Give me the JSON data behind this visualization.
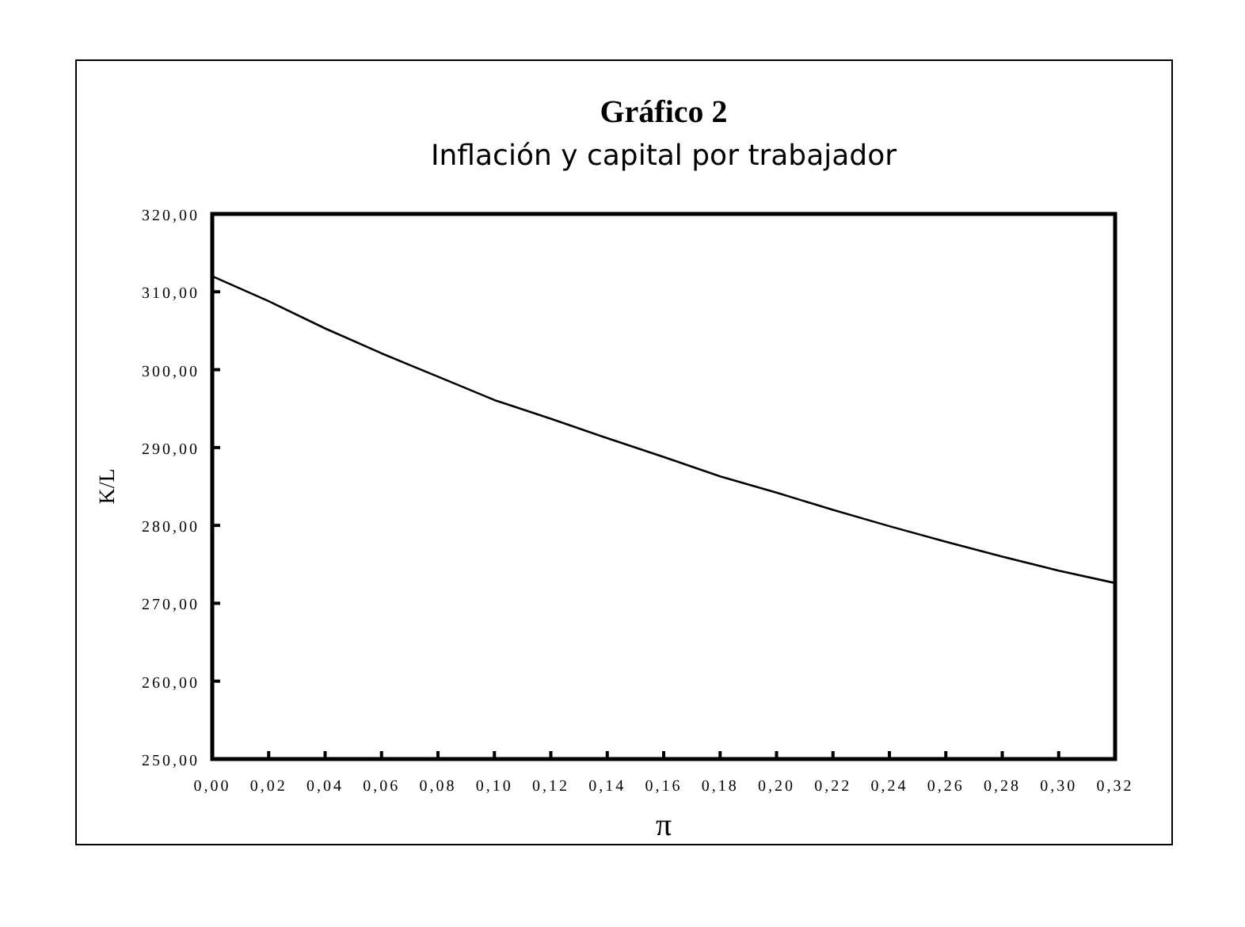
{
  "chart_data": {
    "type": "line",
    "title": "Gráfico 2",
    "subtitle": "Inflación y capital por trabajador",
    "xlabel": "π",
    "ylabel": "K/L",
    "x": [
      0,
      0.02,
      0.04,
      0.06,
      0.08,
      0.1,
      0.12,
      0.14,
      0.16,
      0.18,
      0.2,
      0.22,
      0.24,
      0.26,
      0.28,
      0.3,
      0.32
    ],
    "series": [
      {
        "color": "#000000",
        "values": [
          312,
          308.8,
          305.3,
          302.1,
          299.1,
          296.1,
          293.7,
          291.2,
          288.8,
          286.3,
          284.2,
          282.0,
          279.9,
          277.9,
          276.0,
          274.2,
          272.6
        ]
      }
    ],
    "xlim": [
      0,
      0.32
    ],
    "xticks": [
      {
        "value": 0,
        "label": "0,00"
      },
      {
        "value": 0.02,
        "label": "0,02"
      },
      {
        "value": 0.04,
        "label": "0,04"
      },
      {
        "value": 0.06,
        "label": "0,06"
      },
      {
        "value": 0.08,
        "label": "0,08"
      },
      {
        "value": 0.1,
        "label": "0,10"
      },
      {
        "value": 0.12,
        "label": "0,12"
      },
      {
        "value": 0.14,
        "label": "0,14"
      },
      {
        "value": 0.16,
        "label": "0,16"
      },
      {
        "value": 0.18,
        "label": "0,18"
      },
      {
        "value": 0.2,
        "label": "0,20"
      },
      {
        "value": 0.22,
        "label": "0,22"
      },
      {
        "value": 0.24,
        "label": "0,24"
      },
      {
        "value": 0.26,
        "label": "0,26"
      },
      {
        "value": 0.28,
        "label": "0,28"
      },
      {
        "value": 0.3,
        "label": "0,30"
      },
      {
        "value": 0.32,
        "label": "0,32"
      }
    ],
    "ylim": [
      250,
      320
    ],
    "yticks": [
      {
        "value": 250,
        "label": "250,00"
      },
      {
        "value": 260,
        "label": "260,00"
      },
      {
        "value": 270,
        "label": "270,00"
      },
      {
        "value": 280,
        "label": "280,00"
      },
      {
        "value": 290,
        "label": "290,00"
      },
      {
        "value": 300,
        "label": "300,00"
      },
      {
        "value": 310,
        "label": "310,00"
      },
      {
        "value": 320,
        "label": "320,00"
      }
    ],
    "grid": false,
    "marker": "none",
    "line_style": "solid"
  }
}
